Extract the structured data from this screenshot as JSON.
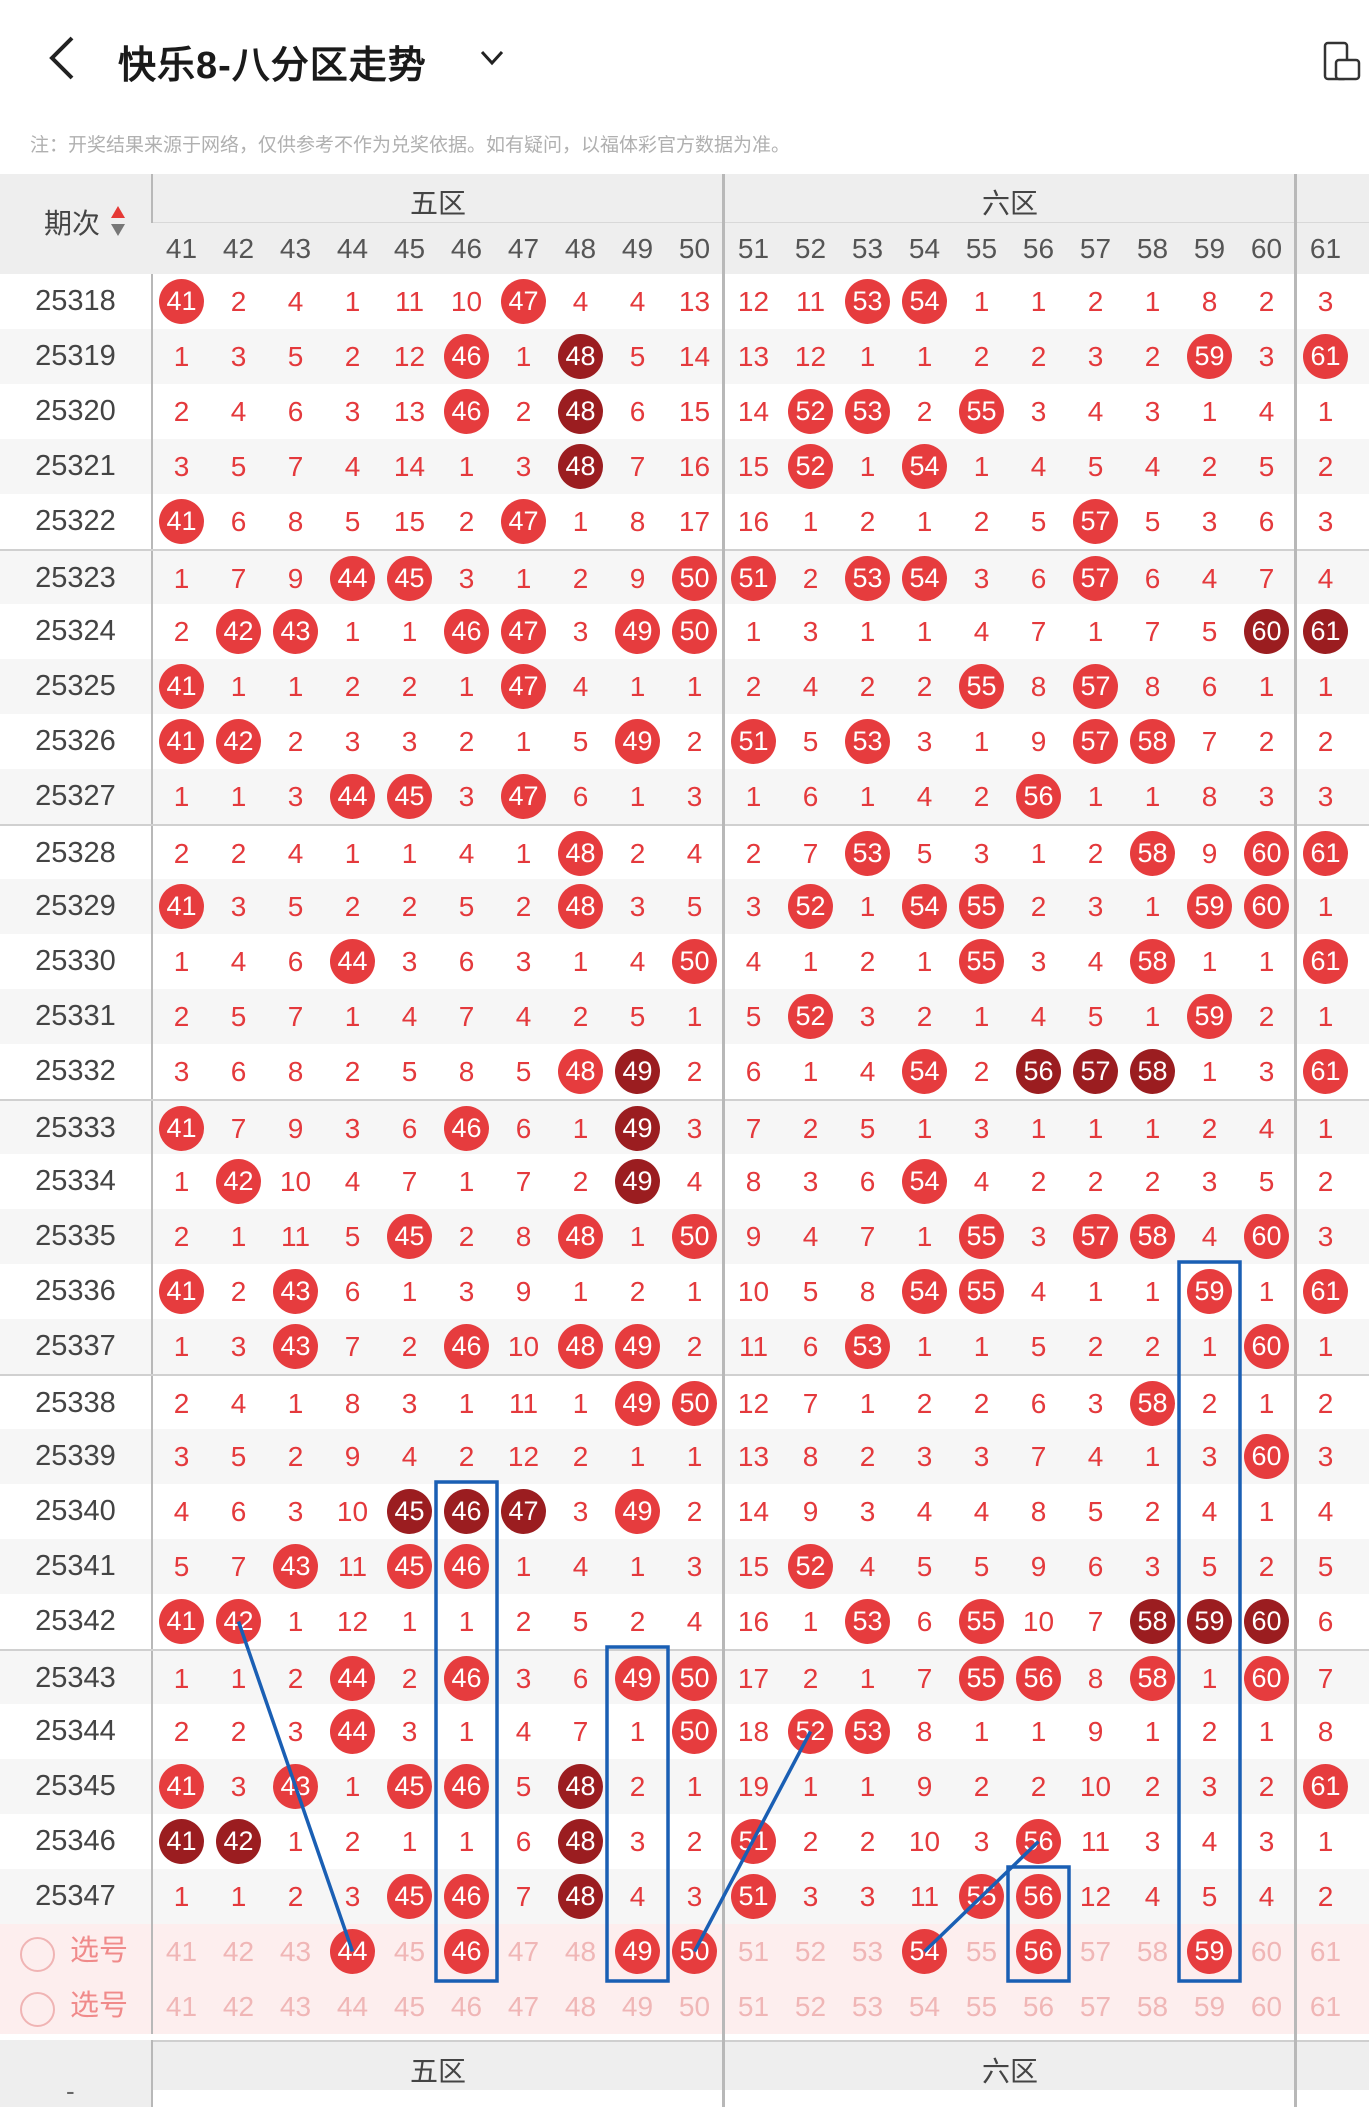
{
  "header": {
    "title": "快乐8-八分区走势",
    "back_icon": "chevron-left-icon",
    "dropdown_icon": "chevron-down-icon",
    "right_icon": "screen-rotate-icon"
  },
  "notice": "注：开奖结果来源于网络，仅供参考不作为兑奖依据。如有疑问，以福体彩官方数据为准。",
  "table": {
    "corner_label": "期次",
    "zones": [
      "五区",
      "六区"
    ],
    "columns": [
      41,
      42,
      43,
      44,
      45,
      46,
      47,
      48,
      49,
      50,
      51,
      52,
      53,
      54,
      55,
      56,
      57,
      58,
      59,
      60,
      61
    ],
    "rows": [
      {
        "period": "25318",
        "cells": [
          "H41",
          "2",
          "4",
          "1",
          "11",
          "10",
          "H47",
          "4",
          "4",
          "13",
          "12",
          "11",
          "H53",
          "H54",
          "1",
          "1",
          "2",
          "1",
          "8",
          "2",
          "3"
        ]
      },
      {
        "period": "25319",
        "cells": [
          "1",
          "3",
          "5",
          "2",
          "12",
          "H46",
          "1",
          "D48",
          "5",
          "14",
          "13",
          "12",
          "1",
          "1",
          "2",
          "2",
          "3",
          "2",
          "H59",
          "3",
          "H61"
        ]
      },
      {
        "period": "25320",
        "cells": [
          "2",
          "4",
          "6",
          "3",
          "13",
          "H46",
          "2",
          "D48",
          "6",
          "15",
          "14",
          "H52",
          "H53",
          "2",
          "H55",
          "3",
          "4",
          "3",
          "1",
          "4",
          "1"
        ]
      },
      {
        "period": "25321",
        "cells": [
          "3",
          "5",
          "7",
          "4",
          "14",
          "1",
          "3",
          "D48",
          "7",
          "16",
          "15",
          "H52",
          "1",
          "H54",
          "1",
          "4",
          "5",
          "4",
          "2",
          "5",
          "2"
        ]
      },
      {
        "period": "25322",
        "cells": [
          "H41",
          "6",
          "8",
          "5",
          "15",
          "2",
          "H47",
          "1",
          "8",
          "17",
          "16",
          "1",
          "2",
          "1",
          "2",
          "5",
          "H57",
          "5",
          "3",
          "6",
          "3"
        ]
      },
      {
        "period": "25323",
        "cells": [
          "1",
          "7",
          "9",
          "H44",
          "H45",
          "3",
          "1",
          "2",
          "9",
          "H50",
          "H51",
          "2",
          "H53",
          "H54",
          "3",
          "6",
          "H57",
          "6",
          "4",
          "7",
          "4"
        ]
      },
      {
        "period": "25324",
        "cells": [
          "2",
          "H42",
          "H43",
          "1",
          "1",
          "H46",
          "H47",
          "3",
          "H49",
          "H50",
          "1",
          "3",
          "1",
          "1",
          "4",
          "7",
          "1",
          "7",
          "5",
          "D60",
          "D61"
        ]
      },
      {
        "period": "25325",
        "cells": [
          "H41",
          "1",
          "1",
          "2",
          "2",
          "1",
          "H47",
          "4",
          "1",
          "1",
          "2",
          "4",
          "2",
          "2",
          "H55",
          "8",
          "H57",
          "8",
          "6",
          "1",
          "1"
        ]
      },
      {
        "period": "25326",
        "cells": [
          "H41",
          "H42",
          "2",
          "3",
          "3",
          "2",
          "1",
          "5",
          "H49",
          "2",
          "H51",
          "5",
          "H53",
          "3",
          "1",
          "9",
          "H57",
          "H58",
          "7",
          "2",
          "2"
        ]
      },
      {
        "period": "25327",
        "cells": [
          "1",
          "1",
          "3",
          "H44",
          "H45",
          "3",
          "H47",
          "6",
          "1",
          "3",
          "1",
          "6",
          "1",
          "4",
          "2",
          "H56",
          "1",
          "1",
          "8",
          "3",
          "3"
        ]
      },
      {
        "period": "25328",
        "cells": [
          "2",
          "2",
          "4",
          "1",
          "1",
          "4",
          "1",
          "H48",
          "2",
          "4",
          "2",
          "7",
          "H53",
          "5",
          "3",
          "1",
          "2",
          "H58",
          "9",
          "H60",
          "H61"
        ]
      },
      {
        "period": "25329",
        "cells": [
          "H41",
          "3",
          "5",
          "2",
          "2",
          "5",
          "2",
          "H48",
          "3",
          "5",
          "3",
          "H52",
          "1",
          "H54",
          "H55",
          "2",
          "3",
          "1",
          "H59",
          "H60",
          "1"
        ]
      },
      {
        "period": "25330",
        "cells": [
          "1",
          "4",
          "6",
          "H44",
          "3",
          "6",
          "3",
          "1",
          "4",
          "H50",
          "4",
          "1",
          "2",
          "1",
          "H55",
          "3",
          "4",
          "H58",
          "1",
          "1",
          "H61"
        ]
      },
      {
        "period": "25331",
        "cells": [
          "2",
          "5",
          "7",
          "1",
          "4",
          "7",
          "4",
          "2",
          "5",
          "1",
          "5",
          "H52",
          "3",
          "2",
          "1",
          "4",
          "5",
          "1",
          "H59",
          "2",
          "1"
        ]
      },
      {
        "period": "25332",
        "cells": [
          "3",
          "6",
          "8",
          "2",
          "5",
          "8",
          "5",
          "H48",
          "D49",
          "2",
          "6",
          "1",
          "4",
          "H54",
          "2",
          "D56",
          "D57",
          "D58",
          "1",
          "3",
          "H61"
        ]
      },
      {
        "period": "25333",
        "cells": [
          "H41",
          "7",
          "9",
          "3",
          "6",
          "H46",
          "6",
          "1",
          "D49",
          "3",
          "7",
          "2",
          "5",
          "1",
          "3",
          "1",
          "1",
          "1",
          "2",
          "4",
          "1"
        ]
      },
      {
        "period": "25334",
        "cells": [
          "1",
          "H42",
          "10",
          "4",
          "7",
          "1",
          "7",
          "2",
          "D49",
          "4",
          "8",
          "3",
          "6",
          "H54",
          "4",
          "2",
          "2",
          "2",
          "3",
          "5",
          "2"
        ]
      },
      {
        "period": "25335",
        "cells": [
          "2",
          "1",
          "11",
          "5",
          "H45",
          "2",
          "8",
          "H48",
          "1",
          "H50",
          "9",
          "4",
          "7",
          "1",
          "H55",
          "3",
          "H57",
          "H58",
          "4",
          "H60",
          "3"
        ]
      },
      {
        "period": "25336",
        "cells": [
          "H41",
          "2",
          "H43",
          "6",
          "1",
          "3",
          "9",
          "1",
          "2",
          "1",
          "10",
          "5",
          "8",
          "H54",
          "H55",
          "4",
          "1",
          "1",
          "H59",
          "1",
          "H61"
        ]
      },
      {
        "period": "25337",
        "cells": [
          "1",
          "3",
          "H43",
          "7",
          "2",
          "H46",
          "10",
          "H48",
          "H49",
          "2",
          "11",
          "6",
          "H53",
          "1",
          "1",
          "5",
          "2",
          "2",
          "1",
          "H60",
          "1"
        ]
      },
      {
        "period": "25338",
        "cells": [
          "2",
          "4",
          "1",
          "8",
          "3",
          "1",
          "11",
          "1",
          "H49",
          "H50",
          "12",
          "7",
          "1",
          "2",
          "2",
          "6",
          "3",
          "H58",
          "2",
          "1",
          "2"
        ]
      },
      {
        "period": "25339",
        "cells": [
          "3",
          "5",
          "2",
          "9",
          "4",
          "2",
          "12",
          "2",
          "1",
          "1",
          "13",
          "8",
          "2",
          "3",
          "3",
          "7",
          "4",
          "1",
          "3",
          "H60",
          "3"
        ]
      },
      {
        "period": "25340",
        "cells": [
          "4",
          "6",
          "3",
          "10",
          "D45",
          "D46",
          "D47",
          "3",
          "H49",
          "2",
          "14",
          "9",
          "3",
          "4",
          "4",
          "8",
          "5",
          "2",
          "4",
          "1",
          "4"
        ]
      },
      {
        "period": "25341",
        "cells": [
          "5",
          "7",
          "H43",
          "11",
          "H45",
          "H46",
          "1",
          "4",
          "1",
          "3",
          "15",
          "H52",
          "4",
          "5",
          "5",
          "9",
          "6",
          "3",
          "5",
          "2",
          "5"
        ]
      },
      {
        "period": "25342",
        "cells": [
          "H41",
          "H42",
          "1",
          "12",
          "1",
          "1",
          "2",
          "5",
          "2",
          "4",
          "16",
          "1",
          "H53",
          "6",
          "H55",
          "10",
          "7",
          "D58",
          "D59",
          "D60",
          "6"
        ]
      },
      {
        "period": "25343",
        "cells": [
          "1",
          "1",
          "2",
          "H44",
          "2",
          "H46",
          "3",
          "6",
          "H49",
          "H50",
          "17",
          "2",
          "1",
          "7",
          "H55",
          "H56",
          "8",
          "H58",
          "1",
          "H60",
          "7"
        ]
      },
      {
        "period": "25344",
        "cells": [
          "2",
          "2",
          "3",
          "H44",
          "3",
          "1",
          "4",
          "7",
          "1",
          "H50",
          "18",
          "H52",
          "H53",
          "8",
          "1",
          "1",
          "9",
          "1",
          "2",
          "1",
          "8"
        ]
      },
      {
        "period": "25345",
        "cells": [
          "H41",
          "3",
          "H43",
          "1",
          "H45",
          "H46",
          "5",
          "D48",
          "2",
          "1",
          "19",
          "1",
          "1",
          "9",
          "2",
          "2",
          "10",
          "2",
          "3",
          "2",
          "H61"
        ]
      },
      {
        "period": "25346",
        "cells": [
          "D41",
          "D42",
          "1",
          "2",
          "1",
          "1",
          "6",
          "D48",
          "3",
          "2",
          "H51",
          "2",
          "2",
          "10",
          "3",
          "H56",
          "11",
          "3",
          "4",
          "3",
          "1"
        ]
      },
      {
        "period": "25347",
        "cells": [
          "1",
          "1",
          "2",
          "3",
          "H45",
          "H46",
          "7",
          "D48",
          "4",
          "3",
          "H51",
          "3",
          "3",
          "11",
          "H55",
          "H56",
          "12",
          "4",
          "5",
          "4",
          "2"
        ]
      }
    ],
    "selection_rows": [
      {
        "label": "选号",
        "selected": [
          44,
          46,
          49,
          50,
          54,
          56,
          59
        ]
      },
      {
        "label": "选号",
        "selected": []
      }
    ],
    "footer_label": "-"
  },
  "colors": {
    "ball": "#e63c3e",
    "ball_dark": "#9b1d20",
    "annotation": "#1a5fb4"
  }
}
